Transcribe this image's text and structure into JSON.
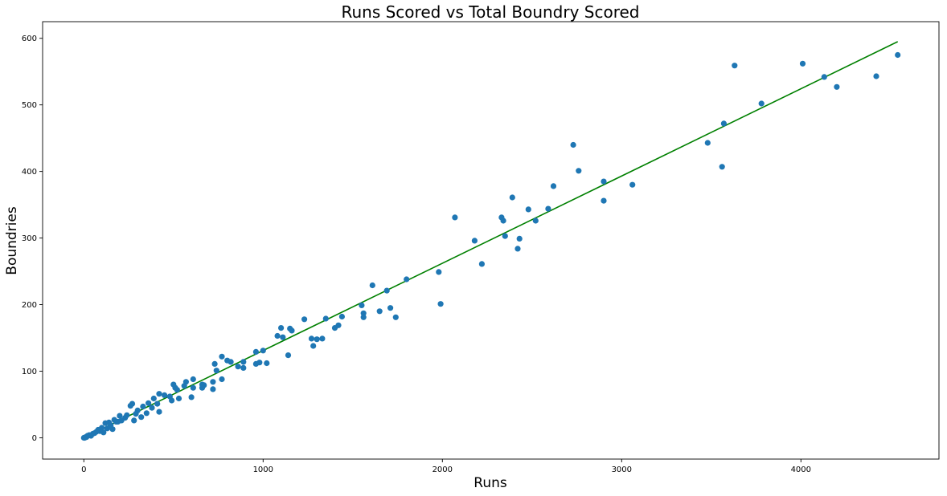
{
  "chart_data": {
    "type": "scatter",
    "title": "Runs Scored vs Total Boundry Scored",
    "xlabel": "Runs",
    "ylabel": "Boundries",
    "xlim": [
      -230,
      4770
    ],
    "ylim": [
      -32,
      625
    ],
    "xticks": [
      0,
      1000,
      2000,
      3000,
      4000
    ],
    "yticks": [
      0,
      100,
      200,
      300,
      400,
      500,
      600
    ],
    "grid": false,
    "colors": {
      "points": "#1f77b4",
      "fit_line": "#008000"
    },
    "fit_line": {
      "x": [
        0,
        4540
      ],
      "y": [
        0,
        595
      ]
    },
    "series": [
      {
        "points": [
          [
            4540,
            575
          ],
          [
            4420,
            543
          ],
          [
            4200,
            527
          ],
          [
            4130,
            542
          ],
          [
            4010,
            562
          ],
          [
            3780,
            502
          ],
          [
            3630,
            559
          ],
          [
            3570,
            472
          ],
          [
            3560,
            407
          ],
          [
            3480,
            443
          ],
          [
            3060,
            380
          ],
          [
            2900,
            385
          ],
          [
            2900,
            356
          ],
          [
            2760,
            401
          ],
          [
            2730,
            440
          ],
          [
            2620,
            378
          ],
          [
            2590,
            344
          ],
          [
            2520,
            326
          ],
          [
            2480,
            343
          ],
          [
            2430,
            299
          ],
          [
            2420,
            284
          ],
          [
            2390,
            361
          ],
          [
            2350,
            303
          ],
          [
            2340,
            326
          ],
          [
            2330,
            331
          ],
          [
            2220,
            261
          ],
          [
            2180,
            296
          ],
          [
            2070,
            331
          ],
          [
            1990,
            201
          ],
          [
            1980,
            249
          ],
          [
            1800,
            238
          ],
          [
            1740,
            181
          ],
          [
            1710,
            195
          ],
          [
            1690,
            221
          ],
          [
            1650,
            190
          ],
          [
            1610,
            229
          ],
          [
            1560,
            181
          ],
          [
            1560,
            187
          ],
          [
            1550,
            199
          ],
          [
            1440,
            182
          ],
          [
            1420,
            169
          ],
          [
            1400,
            165
          ],
          [
            1350,
            179
          ],
          [
            1330,
            149
          ],
          [
            1300,
            148
          ],
          [
            1280,
            138
          ],
          [
            1270,
            149
          ],
          [
            1230,
            178
          ],
          [
            1160,
            161
          ],
          [
            1150,
            164
          ],
          [
            1140,
            124
          ],
          [
            1110,
            151
          ],
          [
            1100,
            165
          ],
          [
            1080,
            153
          ],
          [
            1020,
            112
          ],
          [
            1000,
            131
          ],
          [
            980,
            113
          ],
          [
            960,
            129
          ],
          [
            960,
            111
          ],
          [
            890,
            105
          ],
          [
            890,
            114
          ],
          [
            860,
            107
          ],
          [
            820,
            114
          ],
          [
            800,
            116
          ],
          [
            770,
            88
          ],
          [
            770,
            122
          ],
          [
            740,
            101
          ],
          [
            730,
            111
          ],
          [
            720,
            84
          ],
          [
            720,
            73
          ],
          [
            670,
            79
          ],
          [
            660,
            80
          ],
          [
            660,
            75
          ],
          [
            610,
            88
          ],
          [
            610,
            75
          ],
          [
            600,
            61
          ],
          [
            570,
            84
          ],
          [
            560,
            78
          ],
          [
            520,
            72
          ],
          [
            510,
            75
          ],
          [
            530,
            59
          ],
          [
            500,
            80
          ],
          [
            490,
            56
          ],
          [
            480,
            62
          ],
          [
            450,
            64
          ],
          [
            420,
            66
          ],
          [
            420,
            39
          ],
          [
            410,
            51
          ],
          [
            390,
            59
          ],
          [
            380,
            45
          ],
          [
            360,
            52
          ],
          [
            350,
            37
          ],
          [
            330,
            47
          ],
          [
            320,
            31
          ],
          [
            300,
            41
          ],
          [
            290,
            36
          ],
          [
            280,
            26
          ],
          [
            270,
            51
          ],
          [
            260,
            48
          ],
          [
            240,
            34
          ],
          [
            230,
            30
          ],
          [
            210,
            26
          ],
          [
            200,
            33
          ],
          [
            190,
            24
          ],
          [
            180,
            24
          ],
          [
            170,
            27
          ],
          [
            160,
            13
          ],
          [
            150,
            19
          ],
          [
            140,
            23
          ],
          [
            130,
            14
          ],
          [
            120,
            22
          ],
          [
            110,
            8
          ],
          [
            100,
            15
          ],
          [
            90,
            10
          ],
          [
            80,
            12
          ],
          [
            70,
            9
          ],
          [
            60,
            7
          ],
          [
            50,
            6
          ],
          [
            40,
            3
          ],
          [
            30,
            4
          ],
          [
            20,
            3
          ],
          [
            10,
            1
          ],
          [
            5,
            0
          ],
          [
            0,
            0
          ],
          [
            15,
            1
          ]
        ]
      }
    ]
  }
}
